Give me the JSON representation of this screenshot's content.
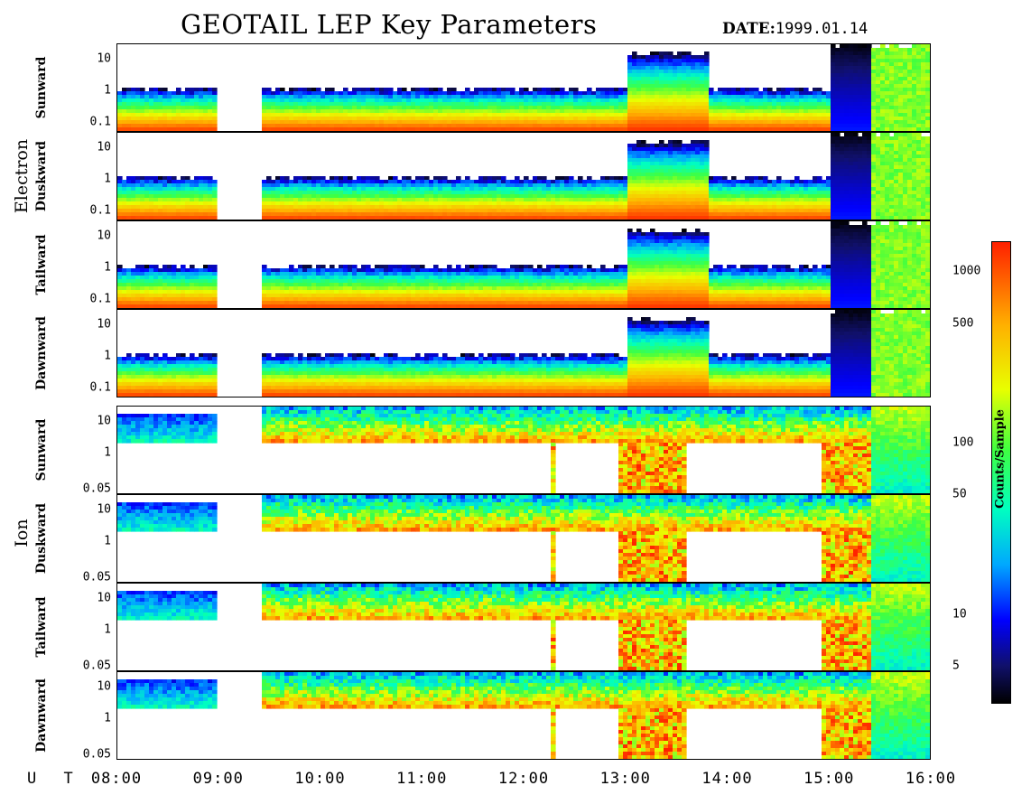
{
  "title": "GEOTAIL LEP Key Parameters",
  "date_label": "DATE:",
  "date_value": "1999.01.14",
  "groups": [
    {
      "label": "Electron"
    },
    {
      "label": "Ion"
    }
  ],
  "ut_label": "U T",
  "colorbar": {
    "label": "Counts/Sample",
    "ticks": [
      {
        "label": "1000",
        "value": 1000
      },
      {
        "label": "500",
        "value": 500
      },
      {
        "label": "100",
        "value": 100
      },
      {
        "label": "50",
        "value": 50
      },
      {
        "label": "10",
        "value": 10
      },
      {
        "label": "5",
        "value": 5
      }
    ],
    "range": [
      3,
      1500
    ],
    "scale": "log"
  },
  "chart_data": {
    "type": "heatmap",
    "x_ticks": [
      "08:00",
      "09:00",
      "10:00",
      "11:00",
      "12:00",
      "13:00",
      "14:00",
      "15:00",
      "16:00"
    ],
    "x_range": [
      "08:00",
      "16:00"
    ],
    "y_scale": "log",
    "data_gaps": [
      [
        "09:00",
        "09:25"
      ]
    ],
    "panels": [
      {
        "group": "Electron",
        "direction": "Sunward",
        "ylim": [
          0.05,
          30
        ],
        "y_ticks": [
          {
            "label": "10",
            "value": 10
          },
          {
            "label": "1",
            "value": 1
          },
          {
            "label": "0.1",
            "value": 0.1
          }
        ]
      },
      {
        "group": "Electron",
        "direction": "Duskward",
        "ylim": [
          0.05,
          30
        ],
        "y_ticks": [
          {
            "label": "10",
            "value": 10
          },
          {
            "label": "1",
            "value": 1
          },
          {
            "label": "0.1",
            "value": 0.1
          }
        ]
      },
      {
        "group": "Electron",
        "direction": "Tailward",
        "ylim": [
          0.05,
          30
        ],
        "y_ticks": [
          {
            "label": "10",
            "value": 10
          },
          {
            "label": "1",
            "value": 1
          },
          {
            "label": "0.1",
            "value": 0.1
          }
        ]
      },
      {
        "group": "Electron",
        "direction": "Dawnward",
        "ylim": [
          0.05,
          30
        ],
        "y_ticks": [
          {
            "label": "10",
            "value": 10
          },
          {
            "label": "1",
            "value": 1
          },
          {
            "label": "0.1",
            "value": 0.1
          }
        ]
      },
      {
        "group": "Ion",
        "direction": "Sunward",
        "ylim": [
          0.05,
          30
        ],
        "y_ticks": [
          {
            "label": "10",
            "value": 10
          },
          {
            "label": "1",
            "value": 1
          },
          {
            "label": "0.05",
            "value": 0.05
          }
        ]
      },
      {
        "group": "Ion",
        "direction": "Duskward",
        "ylim": [
          0.05,
          30
        ],
        "y_ticks": [
          {
            "label": "10",
            "value": 10
          },
          {
            "label": "1",
            "value": 1
          },
          {
            "label": "0.05",
            "value": 0.05
          }
        ]
      },
      {
        "group": "Ion",
        "direction": "Tailward",
        "ylim": [
          0.05,
          30
        ],
        "y_ticks": [
          {
            "label": "10",
            "value": 10
          },
          {
            "label": "1",
            "value": 1
          },
          {
            "label": "0.05",
            "value": 0.05
          }
        ]
      },
      {
        "group": "Ion",
        "direction": "Dawnward",
        "ylim": [
          0.05,
          30
        ],
        "y_ticks": [
          {
            "label": "10",
            "value": 10
          },
          {
            "label": "1",
            "value": 1
          },
          {
            "label": "0.05",
            "value": 0.05
          }
        ]
      }
    ]
  }
}
